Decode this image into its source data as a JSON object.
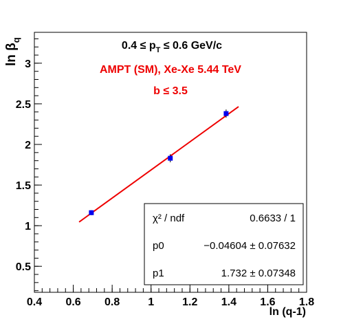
{
  "chart_data": {
    "type": "scatter",
    "title_lines": [
      {
        "text": "0.4 ≤ p",
        "sub": "T",
        "after": " ≤ 0.6 GeV/c",
        "color": "#000000"
      },
      {
        "text": "AMPT (SM), Xe-Xe  5.44 TeV",
        "color": "#ee0000"
      },
      {
        "text": "b ≤ 3.5",
        "color": "#ee0000"
      }
    ],
    "xlabel": "ln (q-1)",
    "ylabel": "ln β",
    "ylabel_sub": "q",
    "xlim": [
      0.4,
      1.8
    ],
    "ylim": [
      0.18,
      3.38
    ],
    "x_ticks": [
      0.4,
      0.6,
      0.8,
      1,
      1.2,
      1.4,
      1.6,
      1.8
    ],
    "y_ticks": [
      0.5,
      1,
      1.5,
      2,
      2.5,
      3
    ],
    "x_tick_labels": [
      "0.4",
      "0.6",
      "0.8",
      "1",
      "1.2",
      "1.4",
      "1.6",
      "1.8"
    ],
    "y_tick_labels": [
      "0.5",
      "1",
      "1.5",
      "2",
      "2.5",
      "3"
    ],
    "points": [
      {
        "x": 0.693,
        "y": 1.16,
        "err": 0.03
      },
      {
        "x": 1.099,
        "y": 1.83,
        "err": 0.05
      },
      {
        "x": 1.386,
        "y": 2.38,
        "err": 0.05
      }
    ],
    "fit": {
      "p0": -0.04604,
      "p1": 1.732,
      "x_range": [
        0.63,
        1.45
      ],
      "color": "#ee0000"
    },
    "marker_color": "#0000ee",
    "stats": [
      {
        "label": "χ² / ndf",
        "value": "0.6633 / 1"
      },
      {
        "label": "p0",
        "value": "−0.04604 ± 0.07632"
      },
      {
        "label": "p1",
        "value": "1.732 ± 0.07348"
      }
    ],
    "grid": false
  }
}
